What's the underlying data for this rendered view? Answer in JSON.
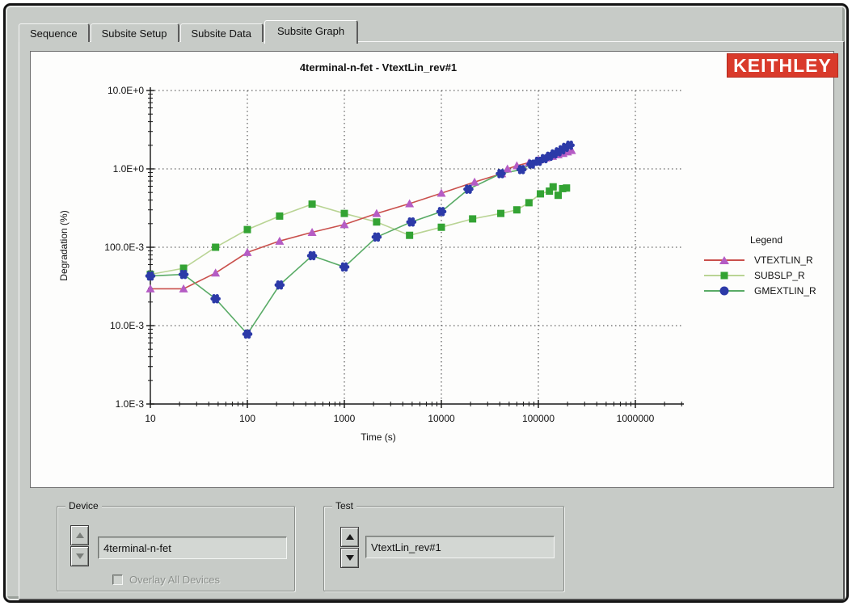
{
  "tabs": [
    {
      "label": "Sequence",
      "active": false
    },
    {
      "label": "Subsite Setup",
      "active": false
    },
    {
      "label": "Subsite Data",
      "active": false
    },
    {
      "label": "Subsite Graph",
      "active": true
    }
  ],
  "logo": {
    "text": "KEITHLEY",
    "bg_color": "#d93a2b",
    "text_color": "#ffffff"
  },
  "chart_data": {
    "type": "line",
    "title": "4terminal-n-fet - VtextLin_rev#1",
    "xlabel": "Time (s)",
    "ylabel": "Degradation (%)",
    "x_scale": "log",
    "y_scale": "log",
    "xlim": [
      10,
      1000000
    ],
    "ylim": [
      0.001,
      10
    ],
    "x_ticks": [
      "10",
      "100",
      "1000",
      "10000",
      "100000",
      "1000000"
    ],
    "y_ticks": [
      "10.0E+0",
      "1.0E+0",
      "100.0E-3",
      "10.0E-3",
      "1.0E-3"
    ],
    "grid": "dotted",
    "legend_position": "right",
    "series": [
      {
        "name": "VTEXTLIN_R",
        "line_color": "#c9504c",
        "marker": "triangle",
        "marker_color": "#b55cc4",
        "points": [
          [
            10,
            0.0295
          ],
          [
            22,
            0.0295
          ],
          [
            47,
            0.047
          ],
          [
            100,
            0.086
          ],
          [
            215,
            0.12
          ],
          [
            465,
            0.155
          ],
          [
            1000,
            0.195
          ],
          [
            2150,
            0.27
          ],
          [
            4700,
            0.36
          ],
          [
            10000,
            0.49
          ],
          [
            22000,
            0.68
          ],
          [
            42000,
            0.87
          ],
          [
            48000,
            1.0
          ],
          [
            60000,
            1.1
          ],
          [
            80000,
            1.2
          ],
          [
            100000,
            1.3
          ],
          [
            120000,
            1.38
          ],
          [
            140000,
            1.45
          ],
          [
            160000,
            1.52
          ],
          [
            180000,
            1.58
          ],
          [
            200000,
            1.65
          ],
          [
            220000,
            1.72
          ]
        ]
      },
      {
        "name": "SUBSLP_R",
        "line_color": "#b9d494",
        "marker": "square",
        "marker_color": "#33a333",
        "points": [
          [
            10,
            0.045
          ],
          [
            22,
            0.054
          ],
          [
            47,
            0.1
          ],
          [
            100,
            0.168
          ],
          [
            215,
            0.25
          ],
          [
            465,
            0.355
          ],
          [
            1000,
            0.27
          ],
          [
            2150,
            0.21
          ],
          [
            4700,
            0.142
          ],
          [
            10000,
            0.18
          ],
          [
            21000,
            0.23
          ],
          [
            41000,
            0.27
          ],
          [
            60000,
            0.3
          ],
          [
            80000,
            0.37
          ],
          [
            105000,
            0.48
          ],
          [
            130000,
            0.52
          ],
          [
            142000,
            0.59
          ],
          [
            160000,
            0.46
          ],
          [
            178000,
            0.56
          ],
          [
            195000,
            0.57
          ]
        ]
      },
      {
        "name": "GMEXTLIN_R",
        "line_color": "#59ab66",
        "marker": "flower",
        "marker_color": "#2c3aa8",
        "points": [
          [
            10,
            0.043
          ],
          [
            22,
            0.045
          ],
          [
            47,
            0.022
          ],
          [
            100,
            0.0078
          ],
          [
            215,
            0.033
          ],
          [
            465,
            0.078
          ],
          [
            1000,
            0.056
          ],
          [
            2150,
            0.135
          ],
          [
            4900,
            0.21
          ],
          [
            10000,
            0.285
          ],
          [
            19000,
            0.55
          ],
          [
            41000,
            0.87
          ],
          [
            67000,
            0.98
          ],
          [
            85000,
            1.15
          ],
          [
            100000,
            1.25
          ],
          [
            115000,
            1.35
          ],
          [
            130000,
            1.45
          ],
          [
            145000,
            1.55
          ],
          [
            160000,
            1.65
          ],
          [
            175000,
            1.75
          ],
          [
            190000,
            1.88
          ],
          [
            210000,
            2.0
          ]
        ]
      }
    ]
  },
  "legend": {
    "title": "Legend"
  },
  "device_group": {
    "title": "Device",
    "value": "4terminal-n-fet",
    "checkbox_label": "Overlay All Devices",
    "checkbox_checked": false
  },
  "test_group": {
    "title": "Test",
    "value": "VtextLin_rev#1"
  }
}
